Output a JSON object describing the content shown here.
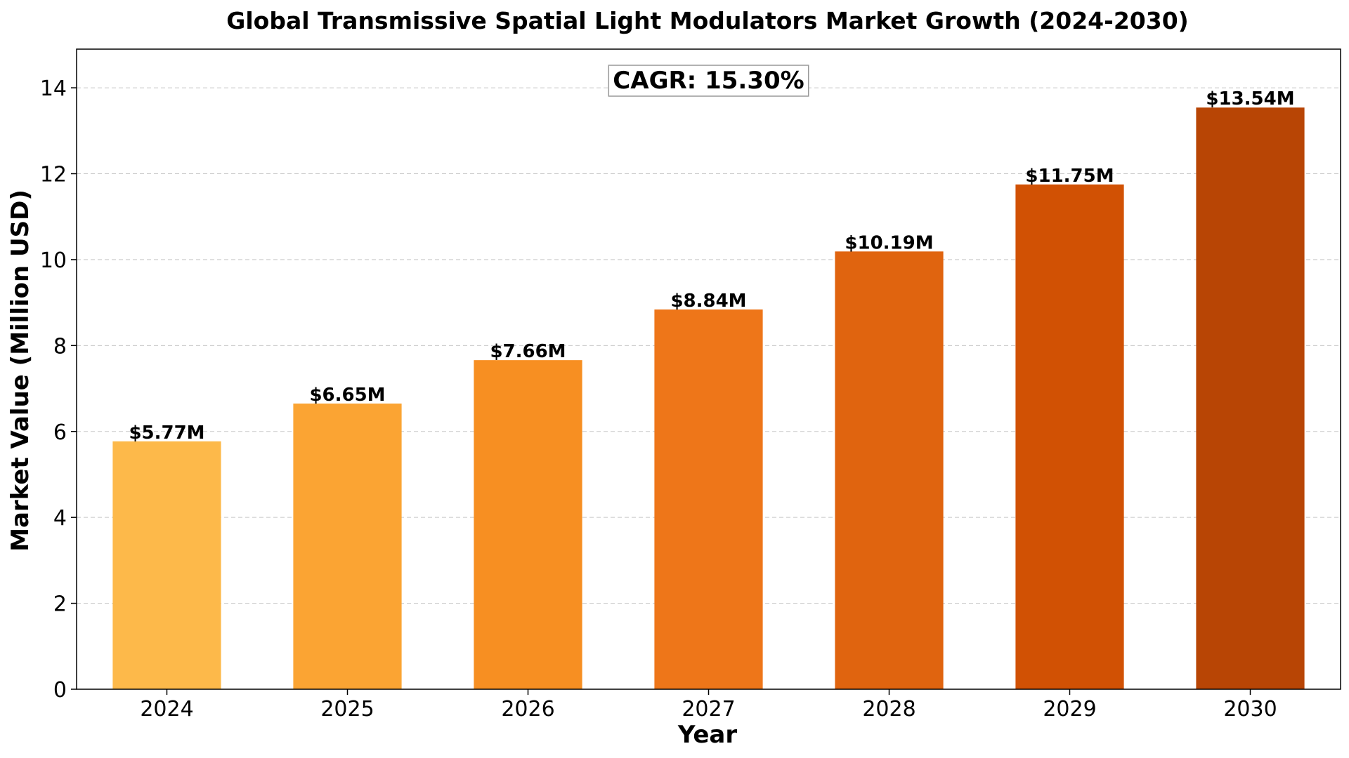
{
  "chart_data": {
    "type": "bar",
    "title": "Global Transmissive Spatial Light Modulators Market Growth (2024-2030)",
    "xlabel": "Year",
    "ylabel": "Market Value (Million USD)",
    "categories": [
      "2024",
      "2025",
      "2026",
      "2027",
      "2028",
      "2029",
      "2030"
    ],
    "values": [
      5.77,
      6.65,
      7.66,
      8.84,
      10.19,
      11.75,
      13.54
    ],
    "value_labels": [
      "$5.77M",
      "$6.65M",
      "$7.66M",
      "$8.84M",
      "$10.19M",
      "$11.75M",
      "$13.54M"
    ],
    "colors": [
      "#FDB94A",
      "#FBA433",
      "#F78F22",
      "#EE7619",
      "#E0640F",
      "#D15104",
      "#B84505"
    ],
    "ylim": [
      0,
      14.9
    ],
    "yticks": [
      0,
      2,
      4,
      6,
      8,
      10,
      12,
      14
    ],
    "grid": "y-dashed",
    "annotation": "CAGR: 15.30%"
  }
}
